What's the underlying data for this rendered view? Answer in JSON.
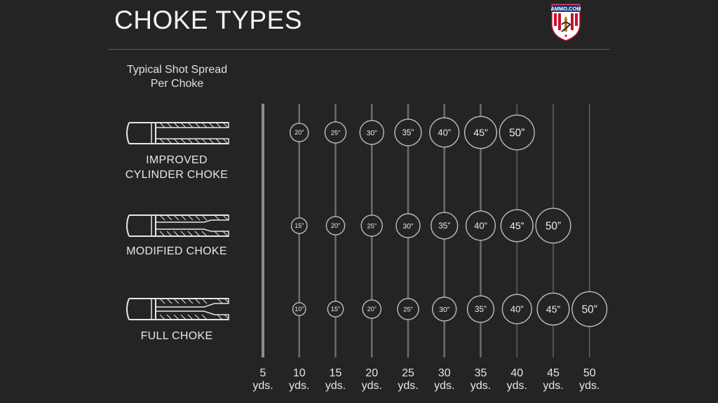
{
  "title": "CHOKE TYPES",
  "logo": {
    "text": "AMMO.COM"
  },
  "subtitle_lines": [
    "Typical Shot Spread",
    "Per Choke"
  ],
  "colors": {
    "background": "#242424",
    "line": "#8a8a8a",
    "circle_stroke": "#bdbdbd",
    "text": "#e8e8e8",
    "logo_red": "#c8102e",
    "logo_blue": "#1d3b78"
  },
  "chokes": [
    {
      "label_lines": [
        "IMPROVED",
        "CYLINDER CHOKE"
      ],
      "constriction": "improved"
    },
    {
      "label_lines": [
        "MODIFIED CHOKE"
      ],
      "constriction": "modified"
    },
    {
      "label_lines": [
        "FULL CHOKE"
      ],
      "constriction": "full"
    }
  ],
  "chart_data": {
    "type": "table",
    "x": [
      5,
      10,
      15,
      20,
      25,
      30,
      35,
      40,
      45,
      50
    ],
    "x_labels": [
      {
        "value": "5",
        "unit": "yds."
      },
      {
        "value": "10",
        "unit": "yds."
      },
      {
        "value": "15",
        "unit": "yds."
      },
      {
        "value": "20",
        "unit": "yds."
      },
      {
        "value": "25",
        "unit": "yds."
      },
      {
        "value": "30",
        "unit": "yds."
      },
      {
        "value": "35",
        "unit": "yds."
      },
      {
        "value": "40",
        "unit": "yds."
      },
      {
        "value": "45",
        "unit": "yds."
      },
      {
        "value": "50",
        "unit": "yds."
      }
    ],
    "series": [
      {
        "name": "IMPROVED CYLINDER CHOKE",
        "points": [
          {
            "x": 10,
            "spread": 20,
            "label": "20”"
          },
          {
            "x": 15,
            "spread": 25,
            "label": "25”"
          },
          {
            "x": 20,
            "spread": 30,
            "label": "30”"
          },
          {
            "x": 25,
            "spread": 35,
            "label": "35”"
          },
          {
            "x": 30,
            "spread": 40,
            "label": "40”"
          },
          {
            "x": 35,
            "spread": 45,
            "label": "45”"
          },
          {
            "x": 40,
            "spread": 50,
            "label": "50”"
          }
        ]
      },
      {
        "name": "MODIFIED CHOKE",
        "points": [
          {
            "x": 10,
            "spread": 15,
            "label": "15”"
          },
          {
            "x": 15,
            "spread": 20,
            "label": "20”"
          },
          {
            "x": 20,
            "spread": 25,
            "label": "25”"
          },
          {
            "x": 25,
            "spread": 30,
            "label": "30”"
          },
          {
            "x": 30,
            "spread": 35,
            "label": "35”"
          },
          {
            "x": 35,
            "spread": 40,
            "label": "40”"
          },
          {
            "x": 40,
            "spread": 45,
            "label": "45”"
          },
          {
            "x": 45,
            "spread": 50,
            "label": "50”"
          }
        ]
      },
      {
        "name": "FULL CHOKE",
        "points": [
          {
            "x": 10,
            "spread": 10,
            "label": "10”"
          },
          {
            "x": 15,
            "spread": 15,
            "label": "15”"
          },
          {
            "x": 20,
            "spread": 20,
            "label": "20”"
          },
          {
            "x": 25,
            "spread": 25,
            "label": "25”"
          },
          {
            "x": 30,
            "spread": 30,
            "label": "30”"
          },
          {
            "x": 35,
            "spread": 35,
            "label": "35”"
          },
          {
            "x": 40,
            "spread": 40,
            "label": "40”"
          },
          {
            "x": 45,
            "spread": 45,
            "label": "45”"
          },
          {
            "x": 50,
            "spread": 50,
            "label": "50”"
          }
        ]
      }
    ]
  }
}
